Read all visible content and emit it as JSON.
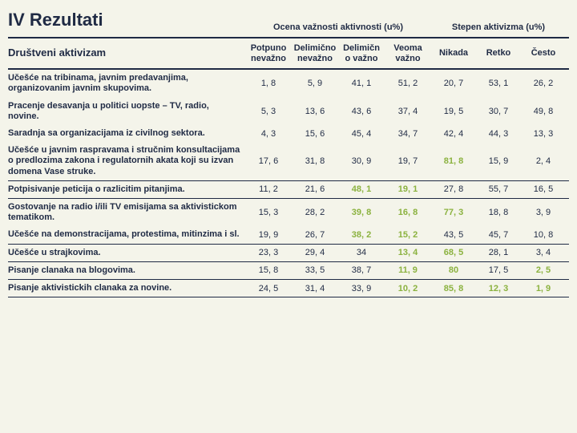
{
  "title": "IV Rezultati",
  "group_headers": {
    "importance": "Ocena važnosti aktivnosti (u%)",
    "activism": "Stepen aktivizma (u%)"
  },
  "row_header": "Društveni aktivizam",
  "columns": {
    "c1": "Potpuno nevažno",
    "c2": "Delimično nevažno",
    "c3": "Delimičn o važno",
    "c4": "Veoma važno",
    "c5": "Nikada",
    "c6": "Retko",
    "c7": "Često"
  },
  "highlight_color": "#8bb23f",
  "rows": [
    {
      "label": "Učešće na tribinama, javnim predavanjima, organizovanim javnim skupovima.",
      "v": [
        "1, 8",
        "5, 9",
        "41, 1",
        "51, 2",
        "20, 7",
        "53, 1",
        "26, 2"
      ],
      "hl": []
    },
    {
      "label": "Pracenje desavanja u politici uopste – TV, radio, novine.",
      "v": [
        "5, 3",
        "13, 6",
        "43, 6",
        "37, 4",
        "19, 5",
        "30, 7",
        "49, 8"
      ],
      "hl": []
    },
    {
      "label": "Saradnja sa organizacijama iz civilnog sektora.",
      "v": [
        "4, 3",
        "15, 6",
        "45, 4",
        "34, 7",
        "42, 4",
        "44, 3",
        "13, 3"
      ],
      "hl": []
    },
    {
      "label": "Učešće u javnim raspravama i stručnim konsultacijama o predlozima zakona i regulatornih akata koji su izvan domena Vase struke.",
      "v": [
        "17, 6",
        "31, 8",
        "30, 9",
        "19, 7",
        "81, 8",
        "15, 9",
        "2, 4"
      ],
      "hl": [
        4
      ]
    },
    {
      "label": "Potpisivanje peticija o razlicitim pitanjima.",
      "v": [
        "11, 2",
        "21, 6",
        "48, 1",
        "19, 1",
        "27, 8",
        "55, 7",
        "16, 5"
      ],
      "hl": [
        2,
        3
      ]
    },
    {
      "label": "Gostovanje na radio i/ili TV emisijama sa aktivistickom tematikom.",
      "v": [
        "15, 3",
        "28, 2",
        "39, 8",
        "16, 8",
        "77, 3",
        "18, 8",
        "3, 9"
      ],
      "hl": [
        2,
        3,
        4
      ]
    },
    {
      "label": "Učešće na demonstracijama, protestima, mitinzima i sl.",
      "v": [
        "19, 9",
        "26, 7",
        "38, 2",
        "15, 2",
        "43, 5",
        "45, 7",
        "10, 8"
      ],
      "hl": [
        2,
        3
      ]
    },
    {
      "label": "Učešće u strajkovima.",
      "v": [
        "23, 3",
        "29, 4",
        "34",
        "13, 4",
        "68, 5",
        "28, 1",
        "3, 4"
      ],
      "hl": [
        3,
        4
      ]
    },
    {
      "label": "Pisanje clanaka na blogovima.",
      "v": [
        "15, 8",
        "33, 5",
        "38, 7",
        "11, 9",
        "80",
        "17, 5",
        "2, 5"
      ],
      "hl": [
        3,
        4,
        6
      ]
    },
    {
      "label": "Pisanje aktivistickih clanaka za novine.",
      "v": [
        "24, 5",
        "31, 4",
        "33, 9",
        "10, 2",
        "85, 8",
        "12, 3",
        "1, 9"
      ],
      "hl": [
        3,
        4,
        5,
        6
      ]
    }
  ],
  "group_borders": [
    3,
    4,
    6,
    7,
    8,
    9
  ]
}
